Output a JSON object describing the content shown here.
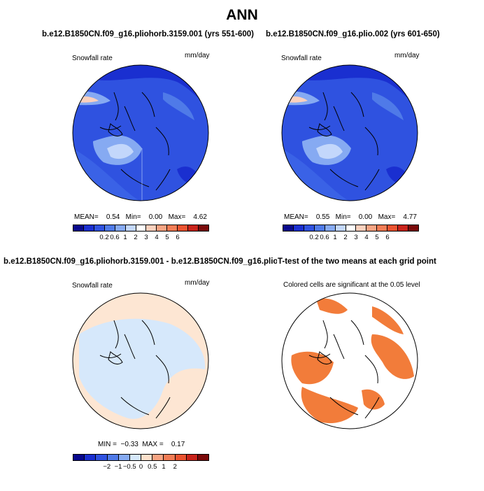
{
  "main_title": "ANN",
  "colors": {
    "snow_scale": [
      "#08088c",
      "#1a2fd0",
      "#2f52e0",
      "#4f7ae8",
      "#86aaf2",
      "#c3d7fb",
      "#ffffff",
      "#fbd0bd",
      "#f7a483",
      "#f27c55",
      "#ea5330",
      "#c8231a",
      "#7a0a0a"
    ],
    "diff_scale": [
      "#08088c",
      "#1a2fd0",
      "#2f52e0",
      "#4f7ae8",
      "#86aaf2",
      "#d6e8fb",
      "#fde0cb",
      "#f7a483",
      "#f27c55",
      "#ea5330",
      "#c8231a",
      "#7a0a0a"
    ],
    "land_line": "#000000",
    "significant": "#f27c3a",
    "diff_positive": "#fde6d3",
    "diff_negative": "#d6e8fb"
  },
  "chart_data": [
    {
      "type": "heatmap",
      "panel": "top-left",
      "title": "b.e12.B1850CN.f09_g16.pliohorb.3159.001 (yrs 551-600)",
      "variable": "Snowfall rate",
      "units": "mm/day",
      "projection": "north polar stereographic",
      "stats": {
        "mean_label": "MEAN=",
        "mean": "0.54",
        "min_label": "Min=",
        "min": "0.00",
        "max_label": "Max=",
        "max": "4.62"
      },
      "colorbar_labels": [
        "0.2",
        "0.6",
        "1",
        "2",
        "3",
        "4",
        "5",
        "6"
      ]
    },
    {
      "type": "heatmap",
      "panel": "top-right",
      "title": "b.e12.B1850CN.f09_g16.plio.002 (yrs 601-650)",
      "variable": "Snowfall rate",
      "units": "mm/day",
      "projection": "north polar stereographic",
      "stats": {
        "mean_label": "MEAN=",
        "mean": "0.55",
        "min_label": "Min=",
        "min": "0.00",
        "max_label": "Max=",
        "max": "4.77"
      },
      "colorbar_labels": [
        "0.2",
        "0.6",
        "1",
        "2",
        "3",
        "4",
        "5",
        "6"
      ]
    },
    {
      "type": "heatmap",
      "panel": "bottom-left",
      "title": "b.e12.B1850CN.f09_g16.pliohorb.3159.001 - b.e12.B1850CN.f09_g16.plio.002",
      "variable": "Snowfall rate",
      "units": "mm/day",
      "projection": "north polar stereographic",
      "stats": {
        "min_label": "MIN =",
        "min": "−0.33",
        "max_label": "MAX =",
        "max": "0.17"
      },
      "colorbar_labels": [
        "−2",
        "−1",
        "−0.5",
        "0",
        "0.5",
        "1",
        "2"
      ]
    },
    {
      "type": "heatmap",
      "panel": "bottom-right",
      "title": "T-test of the two means at each grid point",
      "subtitle": "Colored cells are significant at the 0.05 level",
      "projection": "north polar stereographic"
    }
  ]
}
